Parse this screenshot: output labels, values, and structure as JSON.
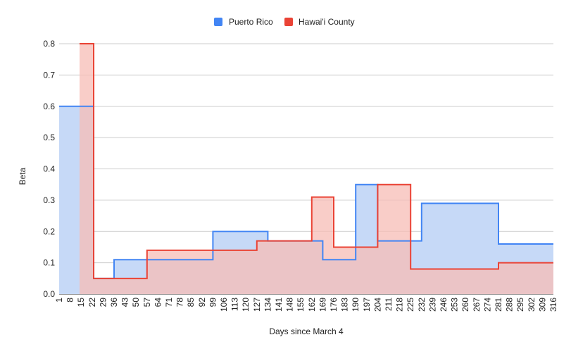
{
  "chart_data": {
    "type": "area",
    "step": true,
    "title": "",
    "xlabel": "Days since March 4",
    "ylabel": "Beta",
    "ylim": [
      0,
      0.8
    ],
    "yticks": [
      0,
      0.1,
      0.2,
      0.3,
      0.4,
      0.5,
      0.6,
      0.7,
      0.8
    ],
    "ytick_labels": [
      "0.0",
      "0.1",
      "0.2",
      "0.3",
      "0.4",
      "0.5",
      "0.6",
      "0.7",
      "0.8"
    ],
    "xlim": [
      1,
      316
    ],
    "xticks": [
      1,
      8,
      15,
      22,
      29,
      36,
      43,
      50,
      57,
      64,
      71,
      78,
      85,
      92,
      99,
      106,
      113,
      120,
      127,
      134,
      141,
      148,
      155,
      162,
      169,
      176,
      183,
      190,
      197,
      204,
      211,
      218,
      225,
      232,
      239,
      246,
      253,
      260,
      267,
      274,
      281,
      288,
      295,
      302,
      309,
      316
    ],
    "grid": true,
    "legend_position": "top",
    "series": [
      {
        "name": "Puerto Rico",
        "color": "#4285f4",
        "fill": "#c6d9f7",
        "breakpoints": [
          1,
          23,
          36,
          99,
          134,
          169,
          190,
          204,
          232,
          281
        ],
        "values": [
          0.6,
          0.05,
          0.11,
          0.2,
          0.17,
          0.11,
          0.35,
          0.17,
          0.29,
          0.16
        ]
      },
      {
        "name": "Hawai'i County",
        "color": "#ea4335",
        "fill": "#f7bcb6",
        "breakpoints": [
          14,
          23,
          57,
          127,
          162,
          176,
          204,
          225,
          281
        ],
        "values": [
          0.8,
          0.05,
          0.14,
          0.17,
          0.31,
          0.15,
          0.35,
          0.08,
          0.1
        ]
      }
    ]
  }
}
